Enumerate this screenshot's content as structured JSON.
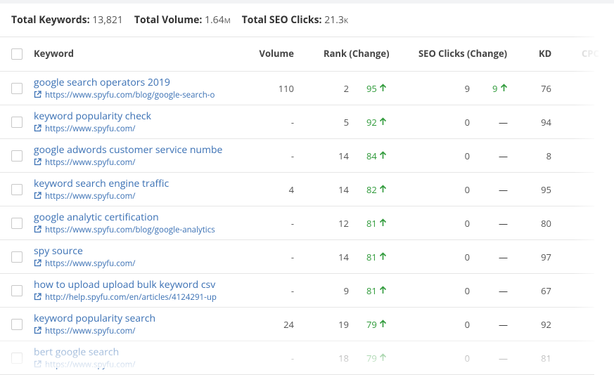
{
  "summary": [
    {
      "label": "Total Keywords:",
      "value": "13,821",
      "unit": ""
    },
    {
      "label": "Total Volume:",
      "value": "1.64",
      "unit": "M"
    },
    {
      "label": "Total SEO Clicks:",
      "value": "21.3",
      "unit": "K"
    }
  ],
  "table": {
    "headers": [
      "Keyword",
      "Volume",
      "Rank (Change)",
      "SEO Clicks (Change)",
      "KD",
      "CPC ("
    ],
    "rows": [
      {
        "keyword": "google search operators 2019",
        "url": "https://www.spyfu.com/blog/google-search-o",
        "volume": "110",
        "rank": "2",
        "rank_change": "95",
        "clicks": "9",
        "clicks_change": "9",
        "kd": "76"
      },
      {
        "keyword": "keyword popularity check",
        "url": "https://www.spyfu.com/",
        "volume": "-",
        "rank": "5",
        "rank_change": "92",
        "clicks": "0",
        "clicks_change": "—",
        "kd": "94"
      },
      {
        "keyword": "google adwords customer service numbe",
        "url": "https://www.spyfu.com/",
        "volume": "-",
        "rank": "14",
        "rank_change": "84",
        "clicks": "0",
        "clicks_change": "—",
        "kd": "8"
      },
      {
        "keyword": "keyword search engine traffic",
        "url": "https://www.spyfu.com/",
        "volume": "4",
        "rank": "14",
        "rank_change": "82",
        "clicks": "0",
        "clicks_change": "—",
        "kd": "95"
      },
      {
        "keyword": "google analytic certification",
        "url": "https://www.spyfu.com/blog/google-analytics",
        "volume": "-",
        "rank": "12",
        "rank_change": "81",
        "clicks": "0",
        "clicks_change": "—",
        "kd": "80"
      },
      {
        "keyword": "spy source",
        "url": "https://www.spyfu.com/",
        "volume": "-",
        "rank": "14",
        "rank_change": "81",
        "clicks": "0",
        "clicks_change": "—",
        "kd": "97"
      },
      {
        "keyword": "how to upload upload bulk keyword csv",
        "url": "http://help.spyfu.com/en/articles/4124291-up",
        "volume": "-",
        "rank": "9",
        "rank_change": "81",
        "clicks": "0",
        "clicks_change": "—",
        "kd": "67"
      },
      {
        "keyword": "keyword popularity search",
        "url": "https://www.spyfu.com/",
        "volume": "24",
        "rank": "19",
        "rank_change": "79",
        "clicks": "0",
        "clicks_change": "—",
        "kd": "92"
      },
      {
        "keyword": "bert google search",
        "url": "https://www.spyfu.com/",
        "volume": "-",
        "rank": "18",
        "rank_change": "79",
        "clicks": "0",
        "clicks_change": "—",
        "kd": "81"
      }
    ]
  }
}
